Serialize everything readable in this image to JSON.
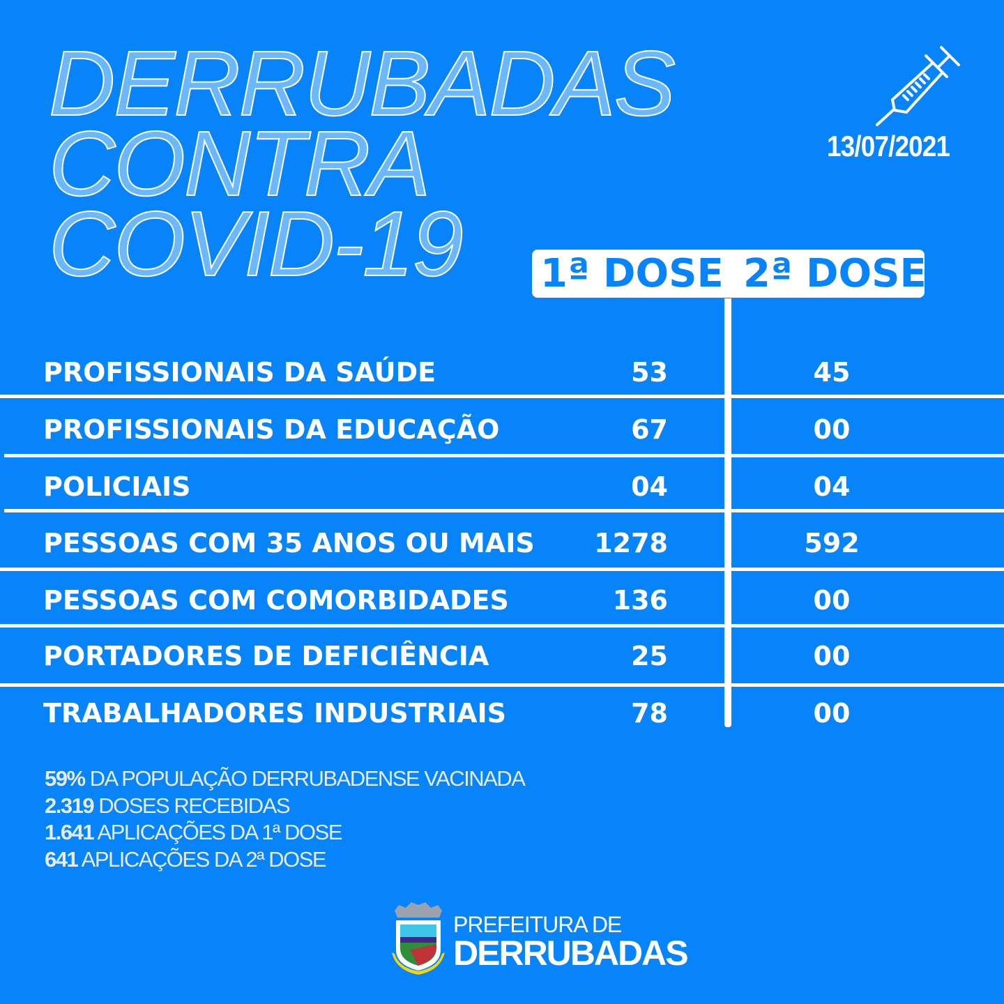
{
  "title_lines": [
    "DERRUBADAS",
    "CONTRA",
    "COVID-19"
  ],
  "date": "13/07/2021",
  "headers": {
    "dose1": "1ª DOSE",
    "dose2": "2ª DOSE"
  },
  "rows": [
    {
      "label": "PROFISSIONAIS DA SAÚDE",
      "dose1": "53",
      "dose2": "45"
    },
    {
      "label": "PROFISSIONAIS DA EDUCAÇÃO",
      "dose1": "67",
      "dose2": "00"
    },
    {
      "label": "POLICIAIS",
      "dose1": "04",
      "dose2": "04"
    },
    {
      "label": "PESSOAS COM 35 ANOS OU MAIS",
      "dose1": "1278",
      "dose2": "592"
    },
    {
      "label": "PESSOAS COM COMORBIDADES",
      "dose1": "136",
      "dose2": "00"
    },
    {
      "label": "PORTADORES DE DEFICIÊNCIA",
      "dose1": "25",
      "dose2": "00"
    },
    {
      "label": "TRABALHADORES INDUSTRIAIS",
      "dose1": "78",
      "dose2": "00"
    }
  ],
  "stats": [
    {
      "value": "59%",
      "text": "DA POPULAÇÃO DERRUBADENSE VACINADA"
    },
    {
      "value": "2.319",
      "text": "DOSES RECEBIDAS"
    },
    {
      "value": "1.641",
      "text": "APLICAÇÕES DA 1ª DOSE"
    },
    {
      "value": "641",
      "text": "APLICAÇÕES DA 2ª DOSE"
    }
  ],
  "footer": {
    "line1": "PREFEITURA DE",
    "line2": "DERRUBADAS",
    "crest_text": "DERRUBADAS"
  },
  "colors": {
    "background": "#0884fa",
    "foreground": "#ffffff"
  }
}
